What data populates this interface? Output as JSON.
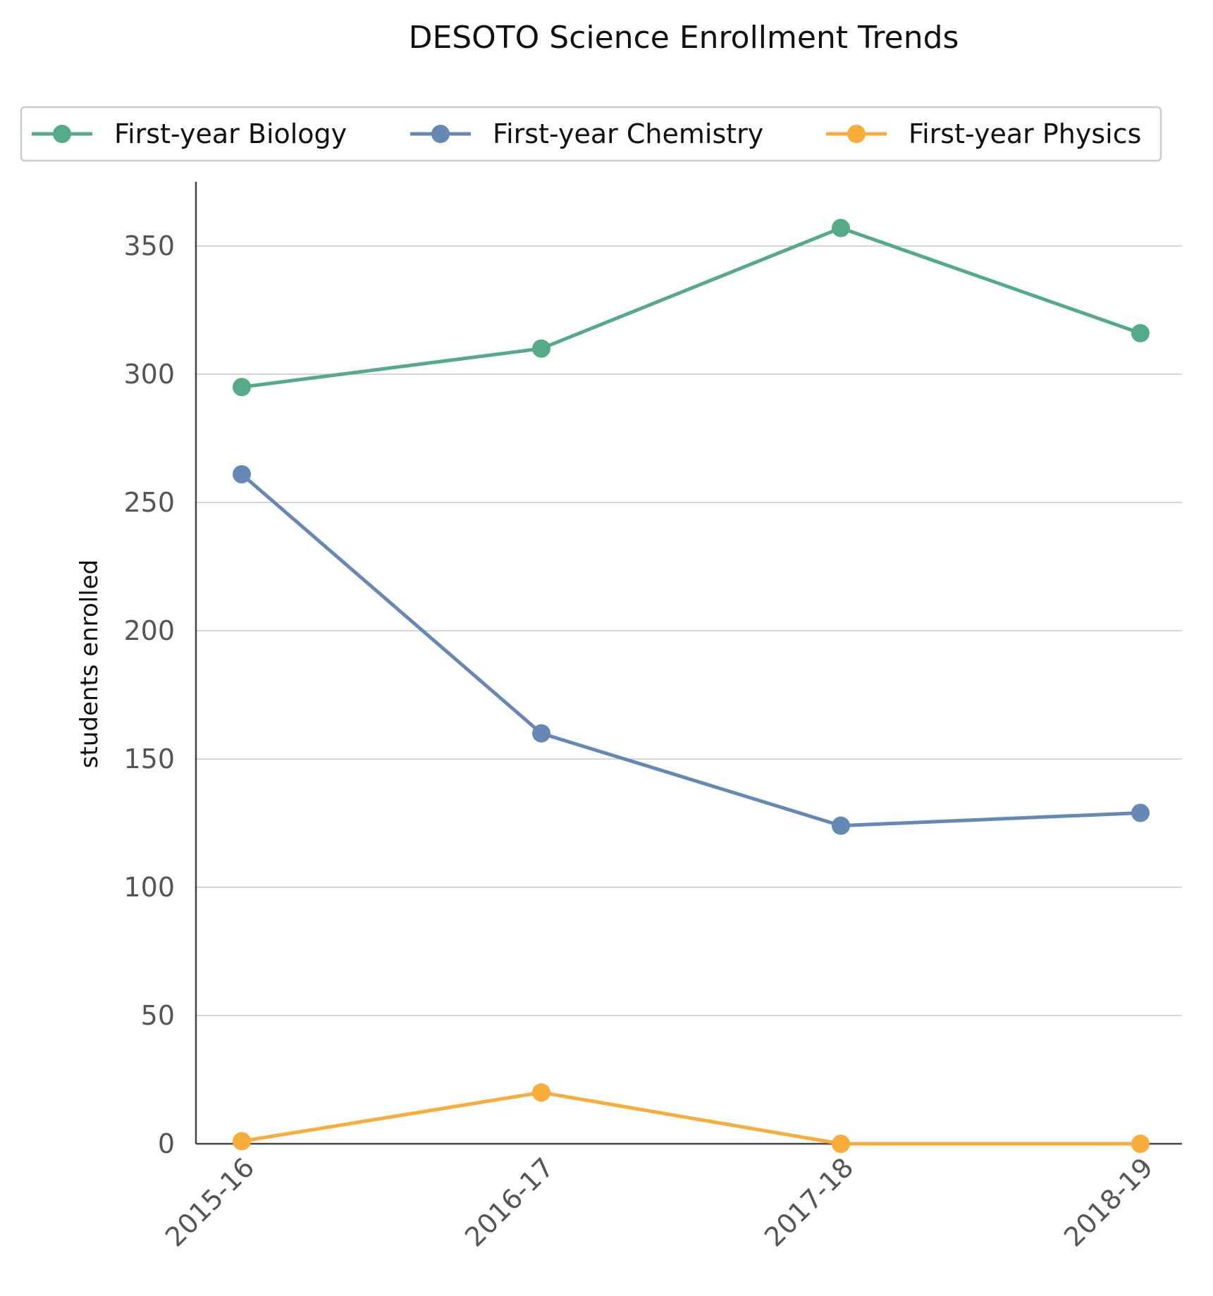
{
  "chart_data": {
    "type": "line",
    "title": "DESOTO Science Enrollment Trends",
    "xlabel": "",
    "ylabel": "students enrolled",
    "categories": [
      "2015-16",
      "2016-17",
      "2017-18",
      "2018-19"
    ],
    "ylim": [
      0,
      375
    ],
    "yticks": [
      0,
      50,
      100,
      150,
      200,
      250,
      300,
      350
    ],
    "grid": "horizontal",
    "legend_position": "top",
    "series": [
      {
        "name": "First-year Biology",
        "color": "#55aa88",
        "values": [
          295,
          310,
          357,
          316
        ]
      },
      {
        "name": "First-year Chemistry",
        "color": "#6688b4",
        "values": [
          261,
          160,
          124,
          129
        ]
      },
      {
        "name": "First-year Physics",
        "color": "#f8ac3a",
        "values": [
          1,
          20,
          0,
          0
        ]
      }
    ]
  }
}
